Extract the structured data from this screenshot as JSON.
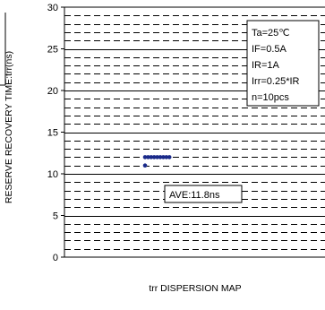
{
  "chart_data": {
    "type": "scatter",
    "title": "",
    "xlabel": "trr DISPERSION MAP",
    "ylabel": "RESERVE RECOVERY TIME:trr(ns)",
    "ylim": [
      0,
      30
    ],
    "y_ticks": [
      0,
      5,
      10,
      15,
      20,
      25,
      30
    ],
    "grid": "major solid lines at each 5 ns, dashed minor lines at each 1 ns",
    "points": [
      {
        "x": 1,
        "y": 11
      },
      {
        "x": 1,
        "y": 12
      },
      {
        "x": 2,
        "y": 12
      },
      {
        "x": 3,
        "y": 12
      },
      {
        "x": 4,
        "y": 12
      },
      {
        "x": 5,
        "y": 12
      },
      {
        "x": 6,
        "y": 12
      },
      {
        "x": 7,
        "y": 12
      },
      {
        "x": 8,
        "y": 12
      },
      {
        "x": 9,
        "y": 12
      }
    ],
    "conditions": [
      "Ta=25℃",
      "IF=0.5A",
      "IR=1A",
      "Irr=0.25*IR",
      "n=10pcs"
    ],
    "average_label": "AVE:11.8ns",
    "colors": {
      "point": "#1a2a8a",
      "grid": "#000000"
    }
  }
}
